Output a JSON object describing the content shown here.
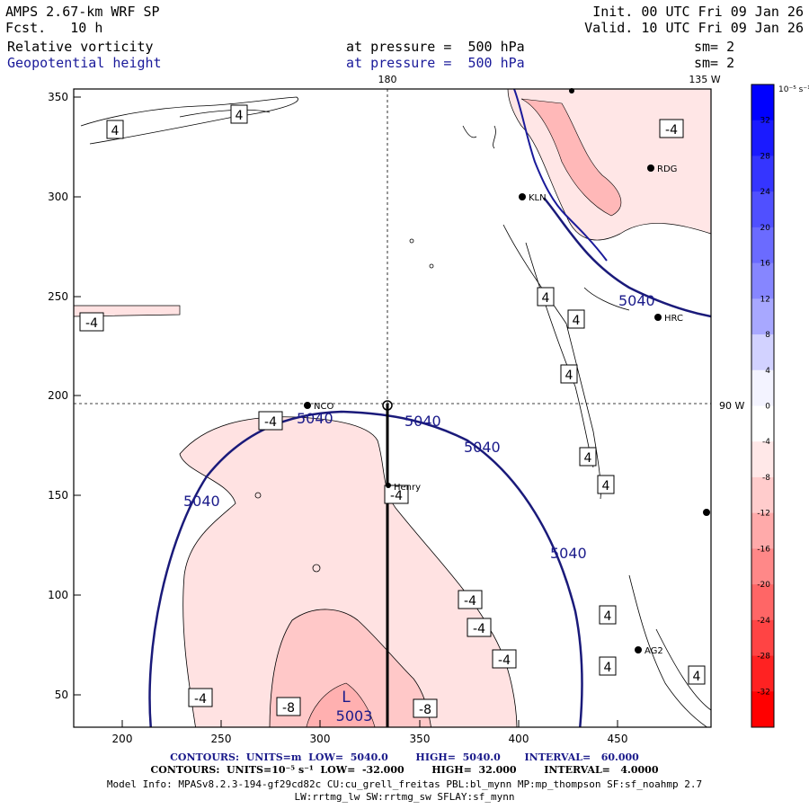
{
  "header": {
    "model": "AMPS 2.67-km WRF SP",
    "forecast": "Fcst.   10 h",
    "init": "Init. 00 UTC Fri 09 Jan 26",
    "valid": "Valid. 10 UTC Fri 09 Jan 26",
    "field1_name": "Relative vorticity",
    "field1_level": "at pressure =  500 hPa",
    "field1_smooth": "sm= 2",
    "field2_name": "Geopotential height",
    "field2_level": "at pressure =  500 hPa",
    "field2_smooth": "sm= 2"
  },
  "map": {
    "meridian_180": "180",
    "meridian_135w": "135 W",
    "parallel_90w": "90 W",
    "x_ticks": [
      "200",
      "250",
      "300",
      "350",
      "400",
      "450"
    ],
    "y_ticks": [
      "350",
      "300",
      "250",
      "200",
      "150",
      "100",
      "50"
    ],
    "stations": [
      {
        "label": "RDG"
      },
      {
        "label": "KLN"
      },
      {
        "label": "HRC"
      },
      {
        "label": "NCO"
      },
      {
        "label": "Henry"
      },
      {
        "label": "AG2"
      }
    ],
    "height_labels": [
      "5040",
      "5040",
      "5040",
      "5040",
      "5040",
      "5040"
    ],
    "low_symbol": "L",
    "low_value": "5003",
    "vort_labels": [
      "4",
      "4",
      "-4",
      "-4",
      "4",
      "4",
      "4",
      "4",
      "4",
      "-4",
      "-4",
      "-4",
      "-4",
      "-4",
      "4",
      "4",
      "4",
      "-4",
      "-8",
      "-8"
    ]
  },
  "colorbar": {
    "unit": "10⁻⁵ s⁻¹",
    "levels": [
      "32",
      "28",
      "24",
      "20",
      "16",
      "12",
      "8",
      "4",
      "0",
      "-4",
      "-8",
      "-12",
      "-16",
      "-20",
      "-24",
      "-28",
      "-32"
    ],
    "colors_top_to_bottom": [
      "#0000ff",
      "#1a1aff",
      "#3535ff",
      "#5050ff",
      "#6b6bff",
      "#8686ff",
      "#a8a8ff",
      "#d2d2ff",
      "#f3f3ff",
      "#ffffff",
      "#ffe8e8",
      "#ffcccc",
      "#ffaaaa",
      "#ff8888",
      "#ff6666",
      "#ff4444",
      "#ff2222",
      "#ff0000"
    ]
  },
  "footer": {
    "line1": "CONTOURS:  UNITS=m  LOW=  5040.0        HIGH=  5040.0       INTERVAL=   60.000",
    "line2": "CONTOURS:  UNITS=10⁻⁵ s⁻¹  LOW=  -32.000        HIGH=  32.000        INTERVAL=   4.0000",
    "line3": "Model Info: MPASv8.2.3-194-gf29cd82c CU:cu_grell_freitas PBL:bl_mynn MP:mp_thompson SF:sf_noahmp 2.7",
    "line4": "LW:rrtmg_lw SW:rrtmg_sw SFLAY:sf_mynn"
  }
}
